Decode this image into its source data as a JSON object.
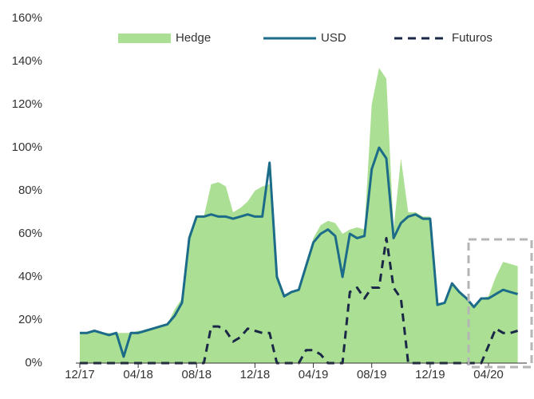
{
  "chart_data": {
    "type": "line",
    "categories": [
      "12/17",
      null,
      null,
      null,
      null,
      null,
      null,
      null,
      "04/18",
      null,
      null,
      null,
      null,
      null,
      null,
      null,
      "08/18",
      null,
      null,
      null,
      null,
      null,
      null,
      null,
      "12/18",
      null,
      null,
      null,
      null,
      null,
      null,
      null,
      "04/19",
      null,
      null,
      null,
      null,
      null,
      null,
      null,
      "08/19",
      null,
      null,
      null,
      null,
      null,
      null,
      null,
      "12/19",
      null,
      null,
      null,
      null,
      null,
      null,
      null,
      "04/20",
      null,
      null,
      null,
      null
    ],
    "series": [
      {
        "name": "Hedge",
        "color": "#abdf93",
        "style": "area",
        "values": [
          14,
          14,
          15,
          14,
          14,
          14,
          14,
          14,
          15,
          15,
          16,
          17,
          18,
          25,
          30,
          60,
          68,
          68,
          83,
          84,
          82,
          70,
          72,
          75,
          80,
          82,
          83,
          42,
          32,
          33,
          34,
          46,
          58,
          64,
          66,
          65,
          60,
          62,
          63,
          62,
          120,
          137,
          132,
          62,
          95,
          70,
          70,
          68,
          68,
          28,
          28,
          37,
          33,
          30,
          27,
          30,
          31,
          40,
          47,
          46,
          45
        ]
      },
      {
        "name": "USD",
        "color": "#1b6b89",
        "style": "line",
        "values": [
          14,
          14,
          15,
          14,
          13,
          14,
          3,
          14,
          14,
          15,
          16,
          17,
          18,
          22,
          28,
          58,
          68,
          68,
          69,
          68,
          68,
          67,
          68,
          69,
          68,
          68,
          93,
          40,
          31,
          33,
          34,
          45,
          56,
          60,
          62,
          59,
          40,
          60,
          58,
          59,
          90,
          100,
          95,
          58,
          65,
          68,
          69,
          67,
          67,
          27,
          28,
          37,
          33,
          30,
          26,
          30,
          30,
          32,
          34,
          33,
          32
        ]
      },
      {
        "name": "Futuros",
        "color": "#1a2747",
        "style": "dashed",
        "values": [
          0,
          0,
          0,
          0,
          0,
          0,
          0,
          0,
          0,
          0,
          0,
          0,
          0,
          0,
          0,
          0,
          0,
          0,
          17,
          17,
          15,
          10,
          12,
          16,
          15,
          14,
          14,
          0,
          0,
          0,
          0,
          6,
          6,
          4,
          0,
          0,
          0,
          33,
          35,
          30,
          35,
          35,
          58,
          35,
          30,
          0,
          0,
          0,
          0,
          0,
          0,
          0,
          0,
          0,
          0,
          0,
          8,
          16,
          14,
          14,
          15
        ]
      }
    ],
    "ylim": [
      0,
      160
    ],
    "yticks": [
      {
        "value": 0,
        "label": "0%"
      },
      {
        "value": 20,
        "label": "20%"
      },
      {
        "value": 40,
        "label": "40%"
      },
      {
        "value": 60,
        "label": "60%"
      },
      {
        "value": 80,
        "label": "80%"
      },
      {
        "value": 100,
        "label": "100%"
      },
      {
        "value": 120,
        "label": "120%"
      },
      {
        "value": 140,
        "label": "140%"
      },
      {
        "value": 160,
        "label": "160%"
      }
    ],
    "legend": "top"
  }
}
